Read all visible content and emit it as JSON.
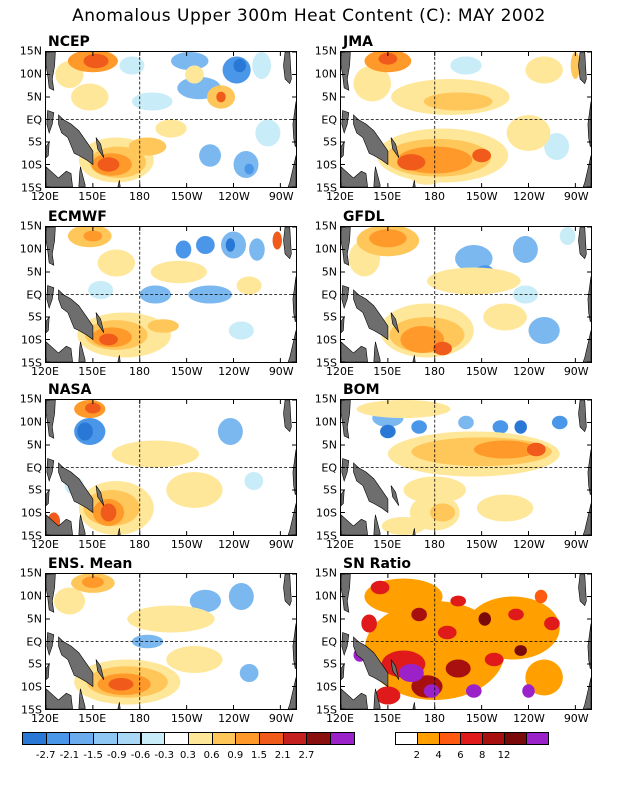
{
  "title": "Anomalous Upper 300m Heat Content (C): MAY 2002",
  "colors": {
    "land": "#6e6e6e",
    "anomaly": {
      "-3": "#2a78d6",
      "-2": "#4a96e8",
      "-1": "#7cb8f0",
      "0": "#a8d8f5",
      "1": "#c8ecf8",
      "2": "#ffe79a",
      "3": "#ffc65a",
      "4": "#ff9a2a",
      "5": "#f05a1a",
      "6": "#c42020",
      "7": "#8a1010",
      "8": "#9b22c8"
    },
    "ratio": {
      "1": "#ffa000",
      "2": "#ff5a10",
      "3": "#e01a1a",
      "4": "#a81010",
      "5": "#7a0a0a",
      "6": "#9b22c8"
    }
  },
  "y_tick_labels": [
    "15N",
    "10N",
    "5N",
    "EQ",
    "5S",
    "10S",
    "15S"
  ],
  "x_tick_labels": [
    "120E",
    "150E",
    "180",
    "150W",
    "120W",
    "90W"
  ],
  "panels": [
    {
      "id": "ncep",
      "label": "NCEP",
      "scale": "anomaly",
      "blobs": [
        {
          "lon": 150,
          "lat": 13,
          "rx": 16,
          "ry": 2.5,
          "lvl": 4
        },
        {
          "lon": 152,
          "lat": 13,
          "rx": 8,
          "ry": 1.6,
          "lvl": 5
        },
        {
          "lon": 135,
          "lat": 10,
          "rx": 9,
          "ry": 3,
          "lvl": 2
        },
        {
          "lon": 148,
          "lat": 5,
          "rx": 12,
          "ry": 3,
          "lvl": 2
        },
        {
          "lon": 188,
          "lat": 4,
          "rx": 13,
          "ry": 2,
          "lvl": 1
        },
        {
          "lon": 232,
          "lat": 5,
          "rx": 9,
          "ry": 2.6,
          "lvl": 3
        },
        {
          "lon": 232,
          "lat": 5,
          "rx": 3,
          "ry": 1.2,
          "lvl": 5
        },
        {
          "lon": 218,
          "lat": 7,
          "rx": 14,
          "ry": 2.5,
          "lvl": -1
        },
        {
          "lon": 242,
          "lat": 11,
          "rx": 9,
          "ry": 3,
          "lvl": -2
        },
        {
          "lon": 244,
          "lat": 12,
          "rx": 4,
          "ry": 1.5,
          "lvl": -3
        },
        {
          "lon": 212,
          "lat": 13,
          "rx": 12,
          "ry": 2,
          "lvl": -1
        },
        {
          "lon": 215,
          "lat": 10,
          "rx": 6,
          "ry": 2,
          "lvl": 2
        },
        {
          "lon": 175,
          "lat": 12,
          "rx": 8,
          "ry": 2,
          "lvl": 1
        },
        {
          "lon": 258,
          "lat": 12,
          "rx": 6,
          "ry": 3,
          "lvl": 1
        },
        {
          "lon": 262,
          "lat": -3,
          "rx": 8,
          "ry": 3,
          "lvl": 1
        },
        {
          "lon": 200,
          "lat": -2,
          "rx": 10,
          "ry": 2,
          "lvl": 2
        },
        {
          "lon": 225,
          "lat": -8,
          "rx": 7,
          "ry": 2.5,
          "lvl": -1
        },
        {
          "lon": 248,
          "lat": -10,
          "rx": 8,
          "ry": 3,
          "lvl": -1
        },
        {
          "lon": 250,
          "lat": -11,
          "rx": 3,
          "ry": 1.2,
          "lvl": -2
        },
        {
          "lon": 165,
          "lat": -9,
          "rx": 24,
          "ry": 5,
          "lvl": 2
        },
        {
          "lon": 166,
          "lat": -9.5,
          "rx": 18,
          "ry": 3.5,
          "lvl": 3
        },
        {
          "lon": 162,
          "lat": -10,
          "rx": 13,
          "ry": 2.5,
          "lvl": 4
        },
        {
          "lon": 160,
          "lat": -10,
          "rx": 7,
          "ry": 1.6,
          "lvl": 5
        },
        {
          "lon": 185,
          "lat": -6,
          "rx": 12,
          "ry": 2,
          "lvl": 3
        }
      ]
    },
    {
      "id": "jma",
      "label": "JMA",
      "scale": "anomaly",
      "blobs": [
        {
          "lon": 150,
          "lat": 13,
          "rx": 15,
          "ry": 2.5,
          "lvl": 4
        },
        {
          "lon": 150,
          "lat": 13.5,
          "rx": 6,
          "ry": 1.3,
          "lvl": 5
        },
        {
          "lon": 140,
          "lat": 8,
          "rx": 12,
          "ry": 4,
          "lvl": 2
        },
        {
          "lon": 190,
          "lat": 5,
          "rx": 38,
          "ry": 4,
          "lvl": 2
        },
        {
          "lon": 195,
          "lat": 4,
          "rx": 22,
          "ry": 2,
          "lvl": 3
        },
        {
          "lon": 250,
          "lat": 11,
          "rx": 12,
          "ry": 3,
          "lvl": 2
        },
        {
          "lon": 270,
          "lat": 12,
          "rx": 3,
          "ry": 3,
          "lvl": 3
        },
        {
          "lon": 200,
          "lat": 12,
          "rx": 10,
          "ry": 2,
          "lvl": 1
        },
        {
          "lon": 240,
          "lat": -3,
          "rx": 14,
          "ry": 4,
          "lvl": 2
        },
        {
          "lon": 258,
          "lat": -6,
          "rx": 8,
          "ry": 3,
          "lvl": 1
        },
        {
          "lon": 185,
          "lat": -8,
          "rx": 42,
          "ry": 6,
          "lvl": 2
        },
        {
          "lon": 182,
          "lat": -8.5,
          "rx": 34,
          "ry": 4.2,
          "lvl": 3
        },
        {
          "lon": 180,
          "lat": -9,
          "rx": 24,
          "ry": 3,
          "lvl": 4
        },
        {
          "lon": 165,
          "lat": -9.5,
          "rx": 9,
          "ry": 1.8,
          "lvl": 5
        },
        {
          "lon": 210,
          "lat": -8,
          "rx": 6,
          "ry": 1.5,
          "lvl": 5
        },
        {
          "lon": 175,
          "lat": -13,
          "rx": 10,
          "ry": 1.5,
          "lvl": 2
        }
      ]
    },
    {
      "id": "ecmwf",
      "label": "ECMWF",
      "scale": "anomaly",
      "blobs": [
        {
          "lon": 148,
          "lat": 13,
          "rx": 14,
          "ry": 2.5,
          "lvl": 3
        },
        {
          "lon": 150,
          "lat": 13,
          "rx": 6,
          "ry": 1.2,
          "lvl": 4
        },
        {
          "lon": 165,
          "lat": 7,
          "rx": 12,
          "ry": 3,
          "lvl": 2
        },
        {
          "lon": 205,
          "lat": 5,
          "rx": 18,
          "ry": 2.5,
          "lvl": 2
        },
        {
          "lon": 208,
          "lat": 10,
          "rx": 5,
          "ry": 2,
          "lvl": -2
        },
        {
          "lon": 222,
          "lat": 11,
          "rx": 6,
          "ry": 2,
          "lvl": -2
        },
        {
          "lon": 240,
          "lat": 11,
          "rx": 8,
          "ry": 3,
          "lvl": -1
        },
        {
          "lon": 238,
          "lat": 11,
          "rx": 3,
          "ry": 1.5,
          "lvl": -3
        },
        {
          "lon": 255,
          "lat": 10,
          "rx": 5,
          "ry": 2.5,
          "lvl": -1
        },
        {
          "lon": 268,
          "lat": 12,
          "rx": 3,
          "ry": 2,
          "lvl": 5
        },
        {
          "lon": 190,
          "lat": 0,
          "rx": 10,
          "ry": 2,
          "lvl": -1
        },
        {
          "lon": 225,
          "lat": 0,
          "rx": 14,
          "ry": 2,
          "lvl": -1
        },
        {
          "lon": 250,
          "lat": 2,
          "rx": 8,
          "ry": 2,
          "lvl": 2
        },
        {
          "lon": 155,
          "lat": 1,
          "rx": 8,
          "ry": 2,
          "lvl": 1
        },
        {
          "lon": 170,
          "lat": -9,
          "rx": 30,
          "ry": 5,
          "lvl": 2
        },
        {
          "lon": 165,
          "lat": -9,
          "rx": 20,
          "ry": 3.3,
          "lvl": 3
        },
        {
          "lon": 162,
          "lat": -9.5,
          "rx": 13,
          "ry": 2.2,
          "lvl": 4
        },
        {
          "lon": 160,
          "lat": -10,
          "rx": 6,
          "ry": 1.3,
          "lvl": 5
        },
        {
          "lon": 195,
          "lat": -7,
          "rx": 10,
          "ry": 1.5,
          "lvl": 3
        },
        {
          "lon": 245,
          "lat": -8,
          "rx": 8,
          "ry": 2,
          "lvl": 1
        }
      ]
    },
    {
      "id": "gfdl",
      "label": "GFDL",
      "scale": "anomaly",
      "blobs": [
        {
          "lon": 150,
          "lat": 12,
          "rx": 20,
          "ry": 3.5,
          "lvl": 3
        },
        {
          "lon": 150,
          "lat": 12.5,
          "rx": 12,
          "ry": 2,
          "lvl": 4
        },
        {
          "lon": 135,
          "lat": 8,
          "rx": 10,
          "ry": 4,
          "lvl": 2
        },
        {
          "lon": 205,
          "lat": 8,
          "rx": 12,
          "ry": 3,
          "lvl": -1
        },
        {
          "lon": 212,
          "lat": 5,
          "rx": 6,
          "ry": 1.5,
          "lvl": -2
        },
        {
          "lon": 238,
          "lat": 10,
          "rx": 8,
          "ry": 3,
          "lvl": -1
        },
        {
          "lon": 265,
          "lat": 13,
          "rx": 5,
          "ry": 2,
          "lvl": 1
        },
        {
          "lon": 205,
          "lat": 3,
          "rx": 30,
          "ry": 3,
          "lvl": 2
        },
        {
          "lon": 238,
          "lat": 0,
          "rx": 8,
          "ry": 2,
          "lvl": 1
        },
        {
          "lon": 225,
          "lat": -5,
          "rx": 14,
          "ry": 3,
          "lvl": 2
        },
        {
          "lon": 250,
          "lat": -8,
          "rx": 10,
          "ry": 3,
          "lvl": -1
        },
        {
          "lon": 175,
          "lat": -8,
          "rx": 30,
          "ry": 6,
          "lvl": 2
        },
        {
          "lon": 175,
          "lat": -9,
          "rx": 24,
          "ry": 4,
          "lvl": 3
        },
        {
          "lon": 172,
          "lat": -10,
          "rx": 14,
          "ry": 3,
          "lvl": 4
        },
        {
          "lon": 185,
          "lat": -12,
          "rx": 6,
          "ry": 1.5,
          "lvl": 5
        }
      ]
    },
    {
      "id": "nasa",
      "label": "NASA",
      "scale": "anomaly",
      "blobs": [
        {
          "lon": 148,
          "lat": 13,
          "rx": 10,
          "ry": 2,
          "lvl": 4
        },
        {
          "lon": 150,
          "lat": 13.2,
          "rx": 5,
          "ry": 1.2,
          "lvl": 5
        },
        {
          "lon": 148,
          "lat": 8,
          "rx": 10,
          "ry": 3,
          "lvl": -2
        },
        {
          "lon": 145,
          "lat": 8,
          "rx": 5,
          "ry": 2,
          "lvl": -3
        },
        {
          "lon": 190,
          "lat": 3,
          "rx": 28,
          "ry": 3,
          "lvl": 2
        },
        {
          "lon": 238,
          "lat": 8,
          "rx": 8,
          "ry": 3,
          "lvl": -1
        },
        {
          "lon": 215,
          "lat": -5,
          "rx": 18,
          "ry": 4,
          "lvl": 2
        },
        {
          "lon": 253,
          "lat": -3,
          "rx": 6,
          "ry": 2,
          "lvl": 1
        },
        {
          "lon": 165,
          "lat": -9,
          "rx": 24,
          "ry": 6,
          "lvl": 2
        },
        {
          "lon": 162,
          "lat": -9,
          "rx": 18,
          "ry": 4,
          "lvl": 3
        },
        {
          "lon": 160,
          "lat": -10,
          "rx": 10,
          "ry": 3,
          "lvl": 4
        },
        {
          "lon": 160,
          "lat": -10,
          "rx": 5,
          "ry": 2,
          "lvl": 5
        },
        {
          "lon": 125,
          "lat": -12,
          "rx": 4,
          "ry": 2,
          "lvl": 5
        },
        {
          "lon": 138,
          "lat": -4,
          "rx": 6,
          "ry": 2,
          "lvl": 1
        }
      ]
    },
    {
      "id": "bom",
      "label": "BOM",
      "scale": "anomaly",
      "blobs": [
        {
          "lon": 160,
          "lat": 13,
          "rx": 30,
          "ry": 2,
          "lvl": 2
        },
        {
          "lon": 150,
          "lat": 11,
          "rx": 10,
          "ry": 2,
          "lvl": -1
        },
        {
          "lon": 150,
          "lat": 8,
          "rx": 5,
          "ry": 1.5,
          "lvl": -3
        },
        {
          "lon": 170,
          "lat": 9,
          "rx": 5,
          "ry": 1.5,
          "lvl": -2
        },
        {
          "lon": 200,
          "lat": 10,
          "rx": 5,
          "ry": 1.5,
          "lvl": -1
        },
        {
          "lon": 222,
          "lat": 9,
          "rx": 5,
          "ry": 1.5,
          "lvl": -2
        },
        {
          "lon": 235,
          "lat": 9,
          "rx": 4,
          "ry": 1.5,
          "lvl": -3
        },
        {
          "lon": 260,
          "lat": 10,
          "rx": 5,
          "ry": 1.5,
          "lvl": -2
        },
        {
          "lon": 205,
          "lat": 3,
          "rx": 55,
          "ry": 5,
          "lvl": 2
        },
        {
          "lon": 210,
          "lat": 3.5,
          "rx": 45,
          "ry": 3.2,
          "lvl": 3
        },
        {
          "lon": 225,
          "lat": 4,
          "rx": 20,
          "ry": 2,
          "lvl": 4
        },
        {
          "lon": 245,
          "lat": 4,
          "rx": 6,
          "ry": 1.5,
          "lvl": 5
        },
        {
          "lon": 180,
          "lat": -5,
          "rx": 20,
          "ry": 3,
          "lvl": 2
        },
        {
          "lon": 180,
          "lat": -10,
          "rx": 16,
          "ry": 4,
          "lvl": 2
        },
        {
          "lon": 185,
          "lat": -10,
          "rx": 8,
          "ry": 2,
          "lvl": 3
        },
        {
          "lon": 225,
          "lat": -9,
          "rx": 18,
          "ry": 3,
          "lvl": 2
        },
        {
          "lon": 160,
          "lat": -13,
          "rx": 14,
          "ry": 2,
          "lvl": 2
        }
      ]
    },
    {
      "id": "ens",
      "label": "ENS. Mean",
      "scale": "anomaly",
      "blobs": [
        {
          "lon": 150,
          "lat": 13,
          "rx": 14,
          "ry": 2.2,
          "lvl": 3
        },
        {
          "lon": 150,
          "lat": 13.2,
          "rx": 7,
          "ry": 1.3,
          "lvl": 4
        },
        {
          "lon": 135,
          "lat": 9,
          "rx": 10,
          "ry": 3,
          "lvl": 2
        },
        {
          "lon": 200,
          "lat": 5,
          "rx": 28,
          "ry": 3,
          "lvl": 2
        },
        {
          "lon": 222,
          "lat": 9,
          "rx": 10,
          "ry": 2.5,
          "lvl": -1
        },
        {
          "lon": 245,
          "lat": 10,
          "rx": 8,
          "ry": 3,
          "lvl": -1
        },
        {
          "lon": 185,
          "lat": 0,
          "rx": 10,
          "ry": 1.5,
          "lvl": -1
        },
        {
          "lon": 215,
          "lat": -4,
          "rx": 18,
          "ry": 3,
          "lvl": 2
        },
        {
          "lon": 250,
          "lat": -7,
          "rx": 6,
          "ry": 2,
          "lvl": -1
        },
        {
          "lon": 172,
          "lat": -9,
          "rx": 34,
          "ry": 5,
          "lvl": 2
        },
        {
          "lon": 172,
          "lat": -9,
          "rx": 26,
          "ry": 3.5,
          "lvl": 3
        },
        {
          "lon": 170,
          "lat": -9.5,
          "rx": 17,
          "ry": 2.4,
          "lvl": 4
        },
        {
          "lon": 168,
          "lat": -9.5,
          "rx": 8,
          "ry": 1.4,
          "lvl": 5
        }
      ]
    },
    {
      "id": "sn",
      "label": "SN Ratio",
      "scale": "ratio",
      "blobs": [
        {
          "lon": 180,
          "lat": -2,
          "rx": 45,
          "ry": 11,
          "lvl": 1
        },
        {
          "lon": 230,
          "lat": 3,
          "rx": 30,
          "ry": 7,
          "lvl": 1
        },
        {
          "lon": 160,
          "lat": 10,
          "rx": 25,
          "ry": 4,
          "lvl": 1
        },
        {
          "lon": 250,
          "lat": -8,
          "rx": 12,
          "ry": 4,
          "lvl": 1
        },
        {
          "lon": 145,
          "lat": 12,
          "rx": 6,
          "ry": 1.5,
          "lvl": 3
        },
        {
          "lon": 138,
          "lat": 4,
          "rx": 5,
          "ry": 2,
          "lvl": 3
        },
        {
          "lon": 170,
          "lat": 6,
          "rx": 5,
          "ry": 1.5,
          "lvl": 4
        },
        {
          "lon": 195,
          "lat": 9,
          "rx": 5,
          "ry": 1.2,
          "lvl": 3
        },
        {
          "lon": 212,
          "lat": 5,
          "rx": 4,
          "ry": 1.5,
          "lvl": 5
        },
        {
          "lon": 232,
          "lat": 6,
          "rx": 5,
          "ry": 1.3,
          "lvl": 3
        },
        {
          "lon": 248,
          "lat": 10,
          "rx": 4,
          "ry": 1.5,
          "lvl": 2
        },
        {
          "lon": 255,
          "lat": 4,
          "rx": 5,
          "ry": 1.5,
          "lvl": 3
        },
        {
          "lon": 160,
          "lat": -5,
          "rx": 14,
          "ry": 3,
          "lvl": 3
        },
        {
          "lon": 165,
          "lat": -7,
          "rx": 8,
          "ry": 2,
          "lvl": 6
        },
        {
          "lon": 175,
          "lat": -10,
          "rx": 10,
          "ry": 2.5,
          "lvl": 4
        },
        {
          "lon": 178,
          "lat": -11,
          "rx": 5,
          "ry": 1.5,
          "lvl": 6
        },
        {
          "lon": 195,
          "lat": -6,
          "rx": 8,
          "ry": 2,
          "lvl": 4
        },
        {
          "lon": 205,
          "lat": -11,
          "rx": 5,
          "ry": 1.5,
          "lvl": 6
        },
        {
          "lon": 218,
          "lat": -4,
          "rx": 6,
          "ry": 1.5,
          "lvl": 3
        },
        {
          "lon": 235,
          "lat": -2,
          "rx": 4,
          "ry": 1.2,
          "lvl": 5
        },
        {
          "lon": 150,
          "lat": -12,
          "rx": 8,
          "ry": 2,
          "lvl": 3
        },
        {
          "lon": 132,
          "lat": -3,
          "rx": 4,
          "ry": 1.5,
          "lvl": 6
        },
        {
          "lon": 240,
          "lat": -11,
          "rx": 4,
          "ry": 1.5,
          "lvl": 6
        },
        {
          "lon": 188,
          "lat": 2,
          "rx": 6,
          "ry": 1.5,
          "lvl": 3
        }
      ]
    }
  ],
  "anomaly_colorbar": {
    "labels": [
      "-2.7",
      "-2.1",
      "-1.5",
      "-0.9",
      "-0.6",
      "-0.3",
      "0.3",
      "0.6",
      "0.9",
      "1.5",
      "2.1",
      "2.7"
    ],
    "colors": [
      "#2a78d6",
      "#4a96e8",
      "#6aacee",
      "#8ec6f4",
      "#a8d8f5",
      "#c8ecf8",
      "#ffffff",
      "#ffe79a",
      "#ffc65a",
      "#ff9a2a",
      "#f05a1a",
      "#c42020",
      "#8a1010",
      "#9b22c8"
    ]
  },
  "ratio_colorbar": {
    "labels": [
      "2",
      "4",
      "6",
      "8",
      "12"
    ],
    "colors": [
      "#ffffff",
      "#ffa000",
      "#ff5a10",
      "#e01a1a",
      "#a81010",
      "#7a0a0a",
      "#9b22c8"
    ]
  }
}
